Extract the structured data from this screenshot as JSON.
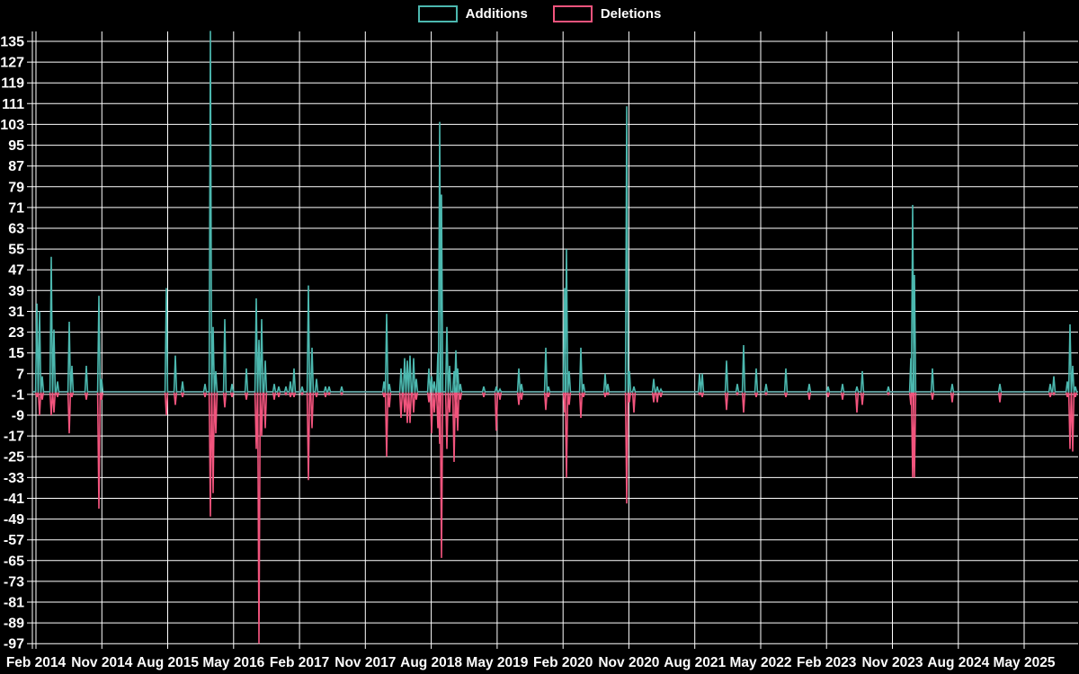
{
  "page": {
    "background": "#000000",
    "text_color": "#ffffff",
    "grid_color": "#ffffff"
  },
  "chart_data": {
    "type": "line",
    "title": "",
    "legend_position": "top-center",
    "grid": true,
    "series_meta": [
      {
        "name": "Additions",
        "color": "#4CB8AF"
      },
      {
        "name": "Deletions",
        "color": "#F2547D"
      }
    ],
    "y_axis": {
      "ticks": [
        135,
        127,
        119,
        111,
        103,
        95,
        87,
        79,
        71,
        63,
        55,
        47,
        39,
        31,
        23,
        15,
        7,
        -1,
        -9,
        -17,
        -25,
        -33,
        -41,
        -49,
        -57,
        -65,
        -73,
        -81,
        -89,
        -97
      ],
      "range": [
        -100,
        139
      ],
      "baseline_value": 0
    },
    "x_axis": {
      "labels": [
        "Feb 2014",
        "Nov 2014",
        "Aug 2015",
        "May 2016",
        "Feb 2017",
        "Nov 2017",
        "Aug 2018",
        "May 2019",
        "Feb 2020",
        "Nov 2020",
        "Aug 2021",
        "May 2022",
        "Feb 2023",
        "Nov 2023",
        "Aug 2024",
        "May 2025"
      ],
      "interval_months": 9
    },
    "points_format": "x_px, additions, deletions (weeks not listed are 0,0)",
    "points": [
      [
        41,
        34,
        -2
      ],
      [
        44,
        31,
        -9
      ],
      [
        47,
        6,
        -3
      ],
      [
        57,
        52,
        -9
      ],
      [
        60,
        24,
        -8
      ],
      [
        64,
        4,
        -2
      ],
      [
        77,
        27,
        -16
      ],
      [
        80,
        10,
        -2
      ],
      [
        96,
        10,
        -3
      ],
      [
        110,
        37,
        -45
      ],
      [
        113,
        5,
        -3
      ],
      [
        185,
        40,
        -9
      ],
      [
        195,
        14,
        -5
      ],
      [
        203,
        4,
        -2
      ],
      [
        228,
        3,
        -2
      ],
      [
        234,
        139,
        -48
      ],
      [
        237,
        25,
        -39
      ],
      [
        240,
        8,
        -16
      ],
      [
        250,
        28,
        -6
      ],
      [
        258,
        3,
        -2
      ],
      [
        274,
        9,
        -3
      ],
      [
        285,
        36,
        -22
      ],
      [
        288,
        20,
        -97
      ],
      [
        291,
        28,
        -17
      ],
      [
        295,
        12,
        -14
      ],
      [
        305,
        3,
        -3
      ],
      [
        310,
        2,
        -2
      ],
      [
        318,
        2,
        -1
      ],
      [
        323,
        4,
        -2
      ],
      [
        327,
        9,
        -2
      ],
      [
        336,
        2,
        -1
      ],
      [
        343,
        41,
        -34
      ],
      [
        347,
        17,
        -14
      ],
      [
        352,
        5,
        -2
      ],
      [
        362,
        2,
        -2
      ],
      [
        366,
        2,
        -1
      ],
      [
        380,
        2,
        -1
      ],
      [
        427,
        4,
        -2
      ],
      [
        430,
        30,
        -25
      ],
      [
        433,
        3,
        -6
      ],
      [
        446,
        9,
        -10
      ],
      [
        450,
        13,
        -8
      ],
      [
        453,
        12,
        -12
      ],
      [
        456,
        14,
        -12
      ],
      [
        460,
        13,
        -8
      ],
      [
        463,
        5,
        -3
      ],
      [
        477,
        9,
        -4
      ],
      [
        480,
        6,
        -16
      ],
      [
        483,
        4,
        -8
      ],
      [
        487,
        15,
        -14
      ],
      [
        489,
        104,
        -20
      ],
      [
        491,
        76,
        -64
      ],
      [
        497,
        25,
        -22
      ],
      [
        500,
        10,
        -8
      ],
      [
        505,
        8,
        -27
      ],
      [
        507,
        16,
        -10
      ],
      [
        509,
        9,
        -15
      ],
      [
        512,
        3,
        -3
      ],
      [
        538,
        2,
        -2
      ],
      [
        552,
        2,
        -15
      ],
      [
        556,
        1,
        -3
      ],
      [
        577,
        9,
        -5
      ],
      [
        580,
        3,
        -3
      ],
      [
        607,
        17,
        -7
      ],
      [
        610,
        2,
        -2
      ],
      [
        628,
        40,
        -8
      ],
      [
        630,
        55,
        -33
      ],
      [
        633,
        8,
        -5
      ],
      [
        646,
        17,
        -10
      ],
      [
        649,
        3,
        -2
      ],
      [
        673,
        7,
        -2
      ],
      [
        676,
        3,
        -1
      ],
      [
        697,
        110,
        -43
      ],
      [
        700,
        8,
        -4
      ],
      [
        705,
        2,
        -8
      ],
      [
        727,
        5,
        -4
      ],
      [
        731,
        2,
        -4
      ],
      [
        735,
        1,
        -2
      ],
      [
        778,
        7,
        -1
      ],
      [
        781,
        7,
        -2
      ],
      [
        808,
        12,
        -7
      ],
      [
        820,
        3,
        -1
      ],
      [
        827,
        18,
        -8
      ],
      [
        841,
        9,
        -2
      ],
      [
        852,
        3,
        -1
      ],
      [
        874,
        9,
        -2
      ],
      [
        900,
        3,
        -3
      ],
      [
        921,
        2,
        -2
      ],
      [
        937,
        3,
        -3
      ],
      [
        953,
        2,
        -8
      ],
      [
        959,
        8,
        -5
      ],
      [
        988,
        2,
        -1
      ],
      [
        1013,
        13,
        -5
      ],
      [
        1015,
        72,
        -33
      ],
      [
        1017,
        45,
        -33
      ],
      [
        1037,
        9,
        -3
      ],
      [
        1059,
        3,
        -4
      ],
      [
        1112,
        3,
        -4
      ],
      [
        1168,
        3,
        -2
      ],
      [
        1172,
        6,
        -1
      ],
      [
        1187,
        4,
        -2
      ],
      [
        1190,
        26,
        -22
      ],
      [
        1193,
        10,
        -23
      ],
      [
        1196,
        2,
        -2
      ]
    ]
  }
}
